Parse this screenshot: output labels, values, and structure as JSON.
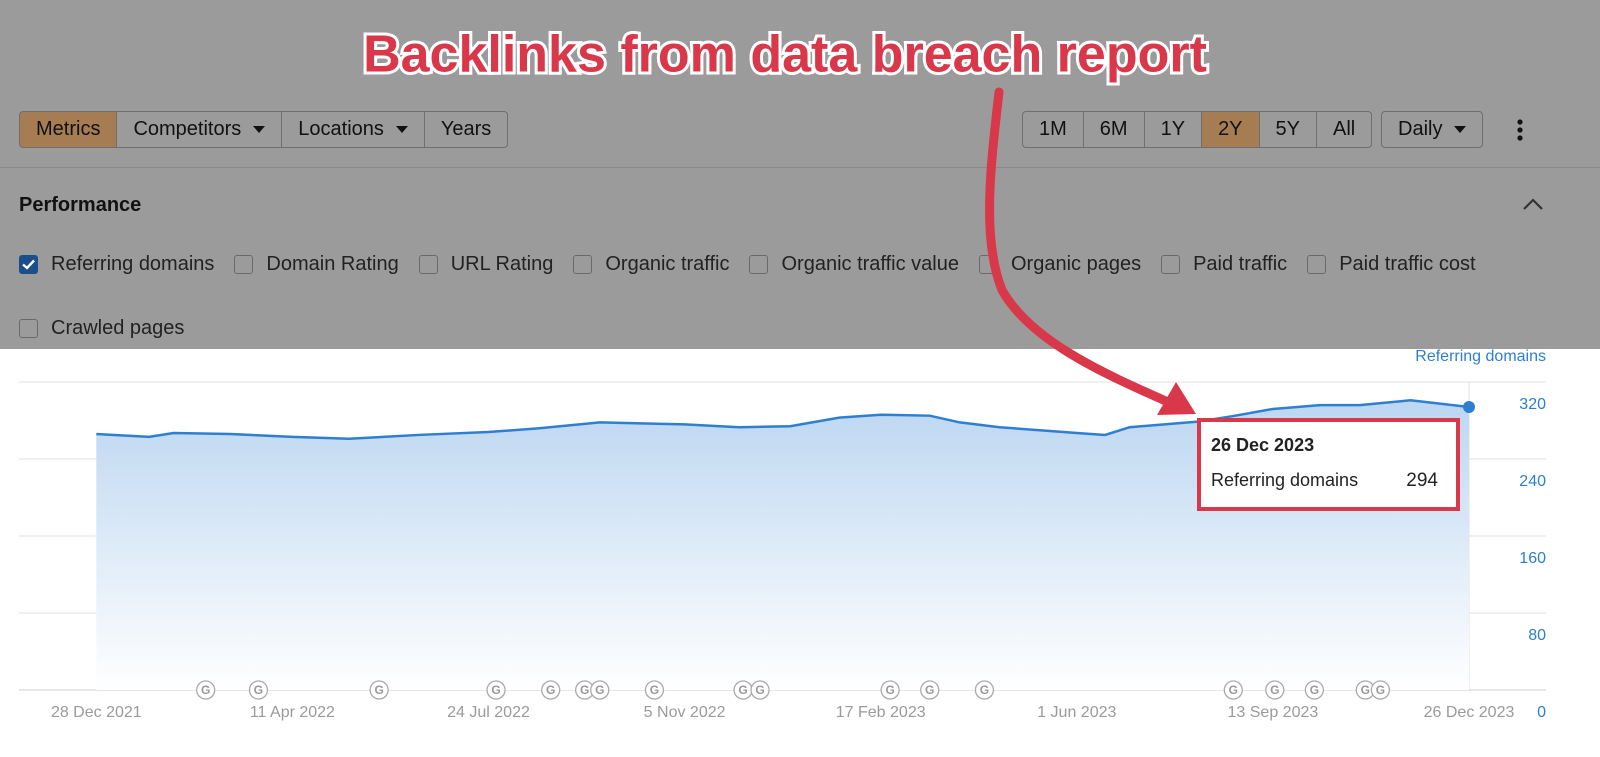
{
  "annotation": "Backlinks from data breach report",
  "toolbar": {
    "tabs": [
      {
        "label": "Metrics",
        "active": true
      },
      {
        "label": "Competitors",
        "dropdown": true
      },
      {
        "label": "Locations",
        "dropdown": true
      },
      {
        "label": "Years"
      }
    ],
    "ranges": [
      {
        "label": "1M"
      },
      {
        "label": "6M"
      },
      {
        "label": "1Y"
      },
      {
        "label": "2Y",
        "active": true
      },
      {
        "label": "5Y"
      },
      {
        "label": "All"
      }
    ],
    "interval": {
      "label": "Daily",
      "dropdown": true
    }
  },
  "performance": {
    "title": "Performance",
    "metrics": [
      {
        "label": "Referring domains",
        "checked": true
      },
      {
        "label": "Domain Rating"
      },
      {
        "label": "URL Rating"
      },
      {
        "label": "Organic traffic"
      },
      {
        "label": "Organic traffic value"
      },
      {
        "label": "Organic pages"
      },
      {
        "label": "Paid traffic"
      },
      {
        "label": "Paid traffic cost"
      },
      {
        "label": "Crawled pages"
      }
    ]
  },
  "chart_data": {
    "type": "area",
    "x": [
      "2021-12-28",
      "2022-01-25",
      "2022-02-07",
      "2022-03-09",
      "2022-04-11",
      "2022-05-11",
      "2022-06-17",
      "2022-07-24",
      "2022-08-20",
      "2022-09-21",
      "2022-11-05",
      "2022-12-04",
      "2022-12-31",
      "2023-01-26",
      "2023-02-17",
      "2023-03-15",
      "2023-03-31",
      "2023-04-21",
      "2023-06-01",
      "2023-06-16",
      "2023-06-29",
      "2023-08-05",
      "2023-08-24",
      "2023-09-13",
      "2023-10-08",
      "2023-10-29",
      "2023-11-25",
      "2023-12-26"
    ],
    "series": [
      {
        "name": "Referring domains",
        "color": "#2e7fd0",
        "values": [
          266,
          263,
          267,
          266,
          263,
          261,
          265,
          268,
          272,
          278,
          276,
          273,
          274,
          283,
          286,
          285,
          278,
          273,
          267,
          265,
          273,
          279,
          285,
          292,
          296,
          296,
          301,
          294
        ]
      }
    ],
    "xlim": [
      "2021-11-17",
      "2023-12-26"
    ],
    "xticks": [
      {
        "value": "2021-12-28",
        "label": "28 Dec 2021"
      },
      {
        "value": "2022-04-11",
        "label": "11 Apr 2022"
      },
      {
        "value": "2022-07-24",
        "label": "24 Jul 2022"
      },
      {
        "value": "2022-11-05",
        "label": "5 Nov 2022"
      },
      {
        "value": "2023-02-17",
        "label": "17 Feb 2023"
      },
      {
        "value": "2023-06-01",
        "label": "1 Jun 2023"
      },
      {
        "value": "2023-09-13",
        "label": "13 Sep 2023"
      },
      {
        "value": "2023-12-26",
        "label": "26 Dec 2023"
      }
    ],
    "ylim": [
      0,
      320
    ],
    "yticks": [
      0,
      80,
      160,
      240,
      320
    ],
    "grid": true,
    "update_marker_label": "G",
    "updates": [
      "2022-02-24",
      "2022-03-24",
      "2022-05-27",
      "2022-07-28",
      "2022-08-26",
      "2022-09-13",
      "2022-09-21",
      "2022-10-20",
      "2022-12-06",
      "2022-12-15",
      "2023-02-22",
      "2023-03-15",
      "2023-04-13",
      "2023-08-23",
      "2023-09-14",
      "2023-10-05",
      "2023-11-01",
      "2023-11-09"
    ]
  },
  "tooltip": {
    "date": "26 Dec 2023",
    "label": "Referring domains",
    "value": 294
  }
}
